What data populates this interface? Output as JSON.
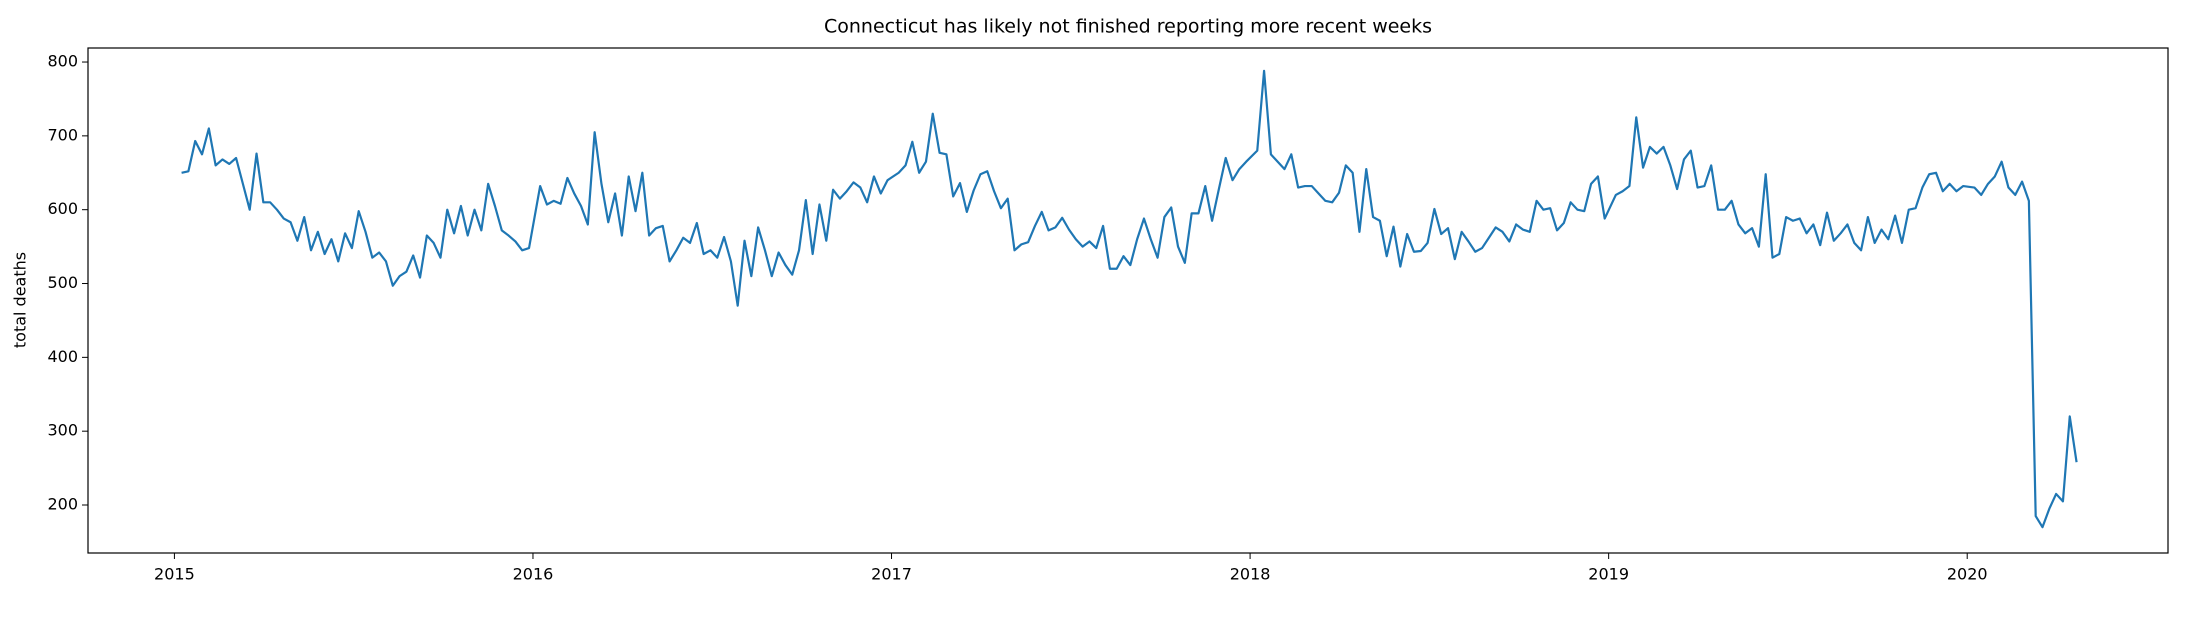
{
  "chart_data": {
    "type": "line",
    "title": "Connecticut has likely not finished reporting more recent weeks",
    "ylabel": "total deaths",
    "x": [
      2015.02,
      2015.039,
      2015.058,
      2015.077,
      2015.096,
      2015.115,
      2015.134,
      2015.153,
      2015.172,
      2015.191,
      2015.21,
      2015.229,
      2015.248,
      2015.267,
      2015.286,
      2015.305,
      2015.324,
      2015.343,
      2015.362,
      2015.381,
      2015.4,
      2015.419,
      2015.438,
      2015.457,
      2015.476,
      2015.495,
      2015.514,
      2015.533,
      2015.552,
      2015.571,
      2015.59,
      2015.609,
      2015.628,
      2015.647,
      2015.666,
      2015.685,
      2015.704,
      2015.723,
      2015.742,
      2015.761,
      2015.78,
      2015.799,
      2015.818,
      2015.837,
      2015.856,
      2015.875,
      2015.894,
      2015.913,
      2015.932,
      2015.951,
      2015.97,
      2015.989,
      2016.02,
      2016.039,
      2016.058,
      2016.077,
      2016.096,
      2016.115,
      2016.134,
      2016.153,
      2016.172,
      2016.191,
      2016.21,
      2016.229,
      2016.248,
      2016.267,
      2016.286,
      2016.305,
      2016.324,
      2016.343,
      2016.362,
      2016.381,
      2016.4,
      2016.419,
      2016.438,
      2016.457,
      2016.476,
      2016.495,
      2016.514,
      2016.533,
      2016.552,
      2016.571,
      2016.59,
      2016.609,
      2016.628,
      2016.647,
      2016.666,
      2016.685,
      2016.704,
      2016.723,
      2016.742,
      2016.761,
      2016.78,
      2016.799,
      2016.818,
      2016.837,
      2016.856,
      2016.875,
      2016.894,
      2016.913,
      2016.932,
      2016.951,
      2016.97,
      2016.989,
      2017.02,
      2017.039,
      2017.058,
      2017.077,
      2017.096,
      2017.115,
      2017.134,
      2017.153,
      2017.172,
      2017.191,
      2017.21,
      2017.229,
      2017.248,
      2017.267,
      2017.286,
      2017.305,
      2017.324,
      2017.343,
      2017.362,
      2017.381,
      2017.4,
      2017.419,
      2017.438,
      2017.457,
      2017.476,
      2017.495,
      2017.514,
      2017.533,
      2017.552,
      2017.571,
      2017.59,
      2017.609,
      2017.628,
      2017.647,
      2017.666,
      2017.685,
      2017.704,
      2017.723,
      2017.742,
      2017.761,
      2017.78,
      2017.799,
      2017.818,
      2017.837,
      2017.856,
      2017.875,
      2017.894,
      2017.913,
      2017.932,
      2017.951,
      2017.97,
      2017.989,
      2018.02,
      2018.039,
      2018.058,
      2018.077,
      2018.096,
      2018.115,
      2018.134,
      2018.153,
      2018.172,
      2018.191,
      2018.21,
      2018.229,
      2018.248,
      2018.267,
      2018.286,
      2018.305,
      2018.324,
      2018.343,
      2018.362,
      2018.381,
      2018.4,
      2018.419,
      2018.438,
      2018.457,
      2018.476,
      2018.495,
      2018.514,
      2018.533,
      2018.552,
      2018.571,
      2018.59,
      2018.609,
      2018.628,
      2018.647,
      2018.666,
      2018.685,
      2018.704,
      2018.723,
      2018.742,
      2018.761,
      2018.78,
      2018.799,
      2018.818,
      2018.837,
      2018.856,
      2018.875,
      2018.894,
      2018.913,
      2018.932,
      2018.951,
      2018.97,
      2018.989,
      2019.02,
      2019.039,
      2019.058,
      2019.077,
      2019.096,
      2019.115,
      2019.134,
      2019.153,
      2019.172,
      2019.191,
      2019.21,
      2019.229,
      2019.248,
      2019.267,
      2019.286,
      2019.305,
      2019.324,
      2019.343,
      2019.362,
      2019.381,
      2019.4,
      2019.419,
      2019.438,
      2019.457,
      2019.476,
      2019.495,
      2019.514,
      2019.533,
      2019.552,
      2019.571,
      2019.59,
      2019.609,
      2019.628,
      2019.647,
      2019.666,
      2019.685,
      2019.704,
      2019.723,
      2019.742,
      2019.761,
      2019.78,
      2019.799,
      2019.818,
      2019.837,
      2019.856,
      2019.875,
      2019.894,
      2019.913,
      2019.932,
      2019.951,
      2019.97,
      2019.989,
      2020.02,
      2020.039,
      2020.058,
      2020.077,
      2020.096,
      2020.115,
      2020.134,
      2020.153,
      2020.172,
      2020.191,
      2020.21,
      2020.229,
      2020.248,
      2020.267,
      2020.286,
      2020.305
    ],
    "series": [
      {
        "color": "#1f77b4",
        "values": [
          650,
          652,
          693,
          675,
          710,
          660,
          668,
          662,
          670,
          635,
          600,
          676,
          610,
          610,
          600,
          588,
          583,
          558,
          590,
          545,
          570,
          540,
          560,
          530,
          568,
          548,
          598,
          570,
          535,
          542,
          530,
          497,
          510,
          516,
          538,
          508,
          565,
          555,
          535,
          600,
          568,
          605,
          565,
          600,
          572,
          635,
          605,
          572,
          565,
          557,
          545,
          548,
          632,
          607,
          612,
          608,
          643,
          622,
          605,
          580,
          705,
          635,
          583,
          622,
          565,
          645,
          598,
          650,
          565,
          575,
          578,
          530,
          545,
          562,
          555,
          582,
          540,
          545,
          535,
          563,
          530,
          470,
          558,
          510,
          576,
          545,
          510,
          542,
          525,
          512,
          545,
          613,
          540,
          607,
          558,
          627,
          615,
          625,
          637,
          630,
          610,
          645,
          622,
          640,
          650,
          660,
          692,
          650,
          665,
          730,
          677,
          675,
          618,
          636,
          597,
          626,
          648,
          652,
          625,
          602,
          615,
          545,
          553,
          556,
          578,
          597,
          572,
          576,
          589,
          573,
          560,
          550,
          557,
          548,
          578,
          520,
          520,
          537,
          525,
          560,
          588,
          560,
          535,
          590,
          603,
          550,
          528,
          595,
          595,
          632,
          585,
          628,
          670,
          640,
          655,
          665,
          680,
          788,
          675,
          665,
          655,
          675,
          630,
          632,
          632,
          622,
          612,
          610,
          623,
          660,
          650,
          570,
          655,
          590,
          585,
          537,
          577,
          523,
          567,
          543,
          544,
          555,
          601,
          567,
          575,
          533,
          570,
          557,
          543,
          548,
          562,
          576,
          570,
          557,
          580,
          573,
          570,
          612,
          600,
          602,
          572,
          582,
          610,
          600,
          598,
          635,
          645,
          588,
          620,
          625,
          632,
          725,
          657,
          685,
          676,
          685,
          660,
          628,
          668,
          680,
          630,
          632,
          660,
          600,
          600,
          612,
          580,
          568,
          575,
          550,
          648,
          535,
          540,
          590,
          585,
          588,
          568,
          580,
          552,
          596,
          558,
          568,
          580,
          555,
          545,
          590,
          555,
          573,
          560,
          592,
          555,
          600,
          602,
          630,
          648,
          650,
          625,
          635,
          625,
          632,
          630,
          620,
          635,
          645,
          665,
          630,
          620,
          638,
          612,
          185,
          170,
          195,
          215,
          205,
          320,
          258
        ]
      }
    ],
    "xlim": [
      2014.759,
      2020.56
    ],
    "xticks": [
      2015,
      2016,
      2017,
      2018,
      2019,
      2020
    ],
    "ylim": [
      135,
      819
    ],
    "yticks": [
      200,
      300,
      400,
      500,
      600,
      700,
      800
    ],
    "grid": false
  }
}
